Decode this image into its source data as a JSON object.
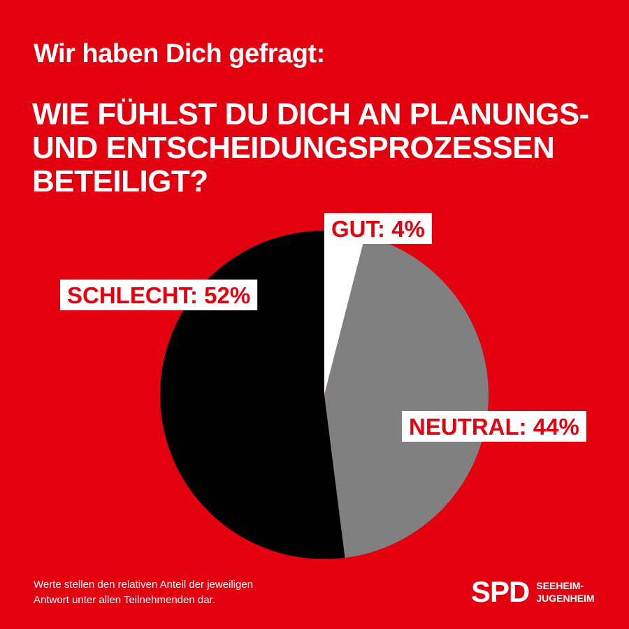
{
  "header": {
    "kicker": "Wir haben Dich gefragt:",
    "question_lines": [
      "WIE FÜHLST DU DICH AN PLANUNGS-",
      "UND ENTSCHEIDUNGSPROZESSEN",
      "BETEILIGT?"
    ]
  },
  "chart_data": {
    "type": "pie",
    "title": "WIE FÜHLST DU DICH AN PLANUNGS- UND ENTSCHEIDUNGSPROZESSEN BETEILIGT?",
    "slices": [
      {
        "label": "GUT",
        "value": 4,
        "display": "GUT: 4%",
        "color": "#ffffff"
      },
      {
        "label": "NEUTRAL",
        "value": 44,
        "display": "NEUTRAL: 44%",
        "color": "#808080"
      },
      {
        "label": "SCHLECHT",
        "value": 52,
        "display": "SCHLECHT: 52%",
        "color": "#000000"
      }
    ],
    "start_angle": "12 o'clock",
    "direction": "clockwise",
    "label_color": "#e3000f",
    "label_background": "#ffffff"
  },
  "footer": {
    "note_lines": [
      "Werte stellen den relativen Anteil der jeweiligen",
      "Antwort unter allen Teilnehmenden dar."
    ],
    "logo": {
      "mark": "SPD",
      "town_lines": [
        "SEEHEIM-",
        "JUGENHEIM"
      ]
    }
  },
  "colors": {
    "background": "#e3000f",
    "text": "#ffffff"
  }
}
